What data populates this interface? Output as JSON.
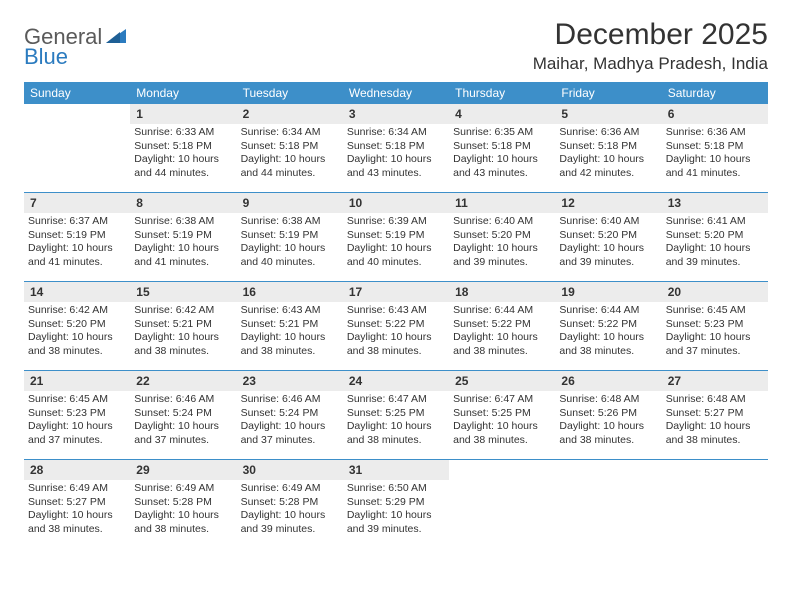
{
  "logo": {
    "word1": "General",
    "word2": "Blue"
  },
  "title": "December 2025",
  "location": "Maihar, Madhya Pradesh, India",
  "colors": {
    "header_bg": "#3d8fc9",
    "header_text": "#ffffff",
    "daynum_bg": "#ececec",
    "rule": "#3d8fc9",
    "logo_blue": "#2b7bbf"
  },
  "day_names": [
    "Sunday",
    "Monday",
    "Tuesday",
    "Wednesday",
    "Thursday",
    "Friday",
    "Saturday"
  ],
  "weeks": [
    [
      null,
      {
        "n": "1",
        "sr": "Sunrise: 6:33 AM",
        "ss": "Sunset: 5:18 PM",
        "d1": "Daylight: 10 hours",
        "d2": "and 44 minutes."
      },
      {
        "n": "2",
        "sr": "Sunrise: 6:34 AM",
        "ss": "Sunset: 5:18 PM",
        "d1": "Daylight: 10 hours",
        "d2": "and 44 minutes."
      },
      {
        "n": "3",
        "sr": "Sunrise: 6:34 AM",
        "ss": "Sunset: 5:18 PM",
        "d1": "Daylight: 10 hours",
        "d2": "and 43 minutes."
      },
      {
        "n": "4",
        "sr": "Sunrise: 6:35 AM",
        "ss": "Sunset: 5:18 PM",
        "d1": "Daylight: 10 hours",
        "d2": "and 43 minutes."
      },
      {
        "n": "5",
        "sr": "Sunrise: 6:36 AM",
        "ss": "Sunset: 5:18 PM",
        "d1": "Daylight: 10 hours",
        "d2": "and 42 minutes."
      },
      {
        "n": "6",
        "sr": "Sunrise: 6:36 AM",
        "ss": "Sunset: 5:18 PM",
        "d1": "Daylight: 10 hours",
        "d2": "and 41 minutes."
      }
    ],
    [
      {
        "n": "7",
        "sr": "Sunrise: 6:37 AM",
        "ss": "Sunset: 5:19 PM",
        "d1": "Daylight: 10 hours",
        "d2": "and 41 minutes."
      },
      {
        "n": "8",
        "sr": "Sunrise: 6:38 AM",
        "ss": "Sunset: 5:19 PM",
        "d1": "Daylight: 10 hours",
        "d2": "and 41 minutes."
      },
      {
        "n": "9",
        "sr": "Sunrise: 6:38 AM",
        "ss": "Sunset: 5:19 PM",
        "d1": "Daylight: 10 hours",
        "d2": "and 40 minutes."
      },
      {
        "n": "10",
        "sr": "Sunrise: 6:39 AM",
        "ss": "Sunset: 5:19 PM",
        "d1": "Daylight: 10 hours",
        "d2": "and 40 minutes."
      },
      {
        "n": "11",
        "sr": "Sunrise: 6:40 AM",
        "ss": "Sunset: 5:20 PM",
        "d1": "Daylight: 10 hours",
        "d2": "and 39 minutes."
      },
      {
        "n": "12",
        "sr": "Sunrise: 6:40 AM",
        "ss": "Sunset: 5:20 PM",
        "d1": "Daylight: 10 hours",
        "d2": "and 39 minutes."
      },
      {
        "n": "13",
        "sr": "Sunrise: 6:41 AM",
        "ss": "Sunset: 5:20 PM",
        "d1": "Daylight: 10 hours",
        "d2": "and 39 minutes."
      }
    ],
    [
      {
        "n": "14",
        "sr": "Sunrise: 6:42 AM",
        "ss": "Sunset: 5:20 PM",
        "d1": "Daylight: 10 hours",
        "d2": "and 38 minutes."
      },
      {
        "n": "15",
        "sr": "Sunrise: 6:42 AM",
        "ss": "Sunset: 5:21 PM",
        "d1": "Daylight: 10 hours",
        "d2": "and 38 minutes."
      },
      {
        "n": "16",
        "sr": "Sunrise: 6:43 AM",
        "ss": "Sunset: 5:21 PM",
        "d1": "Daylight: 10 hours",
        "d2": "and 38 minutes."
      },
      {
        "n": "17",
        "sr": "Sunrise: 6:43 AM",
        "ss": "Sunset: 5:22 PM",
        "d1": "Daylight: 10 hours",
        "d2": "and 38 minutes."
      },
      {
        "n": "18",
        "sr": "Sunrise: 6:44 AM",
        "ss": "Sunset: 5:22 PM",
        "d1": "Daylight: 10 hours",
        "d2": "and 38 minutes."
      },
      {
        "n": "19",
        "sr": "Sunrise: 6:44 AM",
        "ss": "Sunset: 5:22 PM",
        "d1": "Daylight: 10 hours",
        "d2": "and 38 minutes."
      },
      {
        "n": "20",
        "sr": "Sunrise: 6:45 AM",
        "ss": "Sunset: 5:23 PM",
        "d1": "Daylight: 10 hours",
        "d2": "and 37 minutes."
      }
    ],
    [
      {
        "n": "21",
        "sr": "Sunrise: 6:45 AM",
        "ss": "Sunset: 5:23 PM",
        "d1": "Daylight: 10 hours",
        "d2": "and 37 minutes."
      },
      {
        "n": "22",
        "sr": "Sunrise: 6:46 AM",
        "ss": "Sunset: 5:24 PM",
        "d1": "Daylight: 10 hours",
        "d2": "and 37 minutes."
      },
      {
        "n": "23",
        "sr": "Sunrise: 6:46 AM",
        "ss": "Sunset: 5:24 PM",
        "d1": "Daylight: 10 hours",
        "d2": "and 37 minutes."
      },
      {
        "n": "24",
        "sr": "Sunrise: 6:47 AM",
        "ss": "Sunset: 5:25 PM",
        "d1": "Daylight: 10 hours",
        "d2": "and 38 minutes."
      },
      {
        "n": "25",
        "sr": "Sunrise: 6:47 AM",
        "ss": "Sunset: 5:25 PM",
        "d1": "Daylight: 10 hours",
        "d2": "and 38 minutes."
      },
      {
        "n": "26",
        "sr": "Sunrise: 6:48 AM",
        "ss": "Sunset: 5:26 PM",
        "d1": "Daylight: 10 hours",
        "d2": "and 38 minutes."
      },
      {
        "n": "27",
        "sr": "Sunrise: 6:48 AM",
        "ss": "Sunset: 5:27 PM",
        "d1": "Daylight: 10 hours",
        "d2": "and 38 minutes."
      }
    ],
    [
      {
        "n": "28",
        "sr": "Sunrise: 6:49 AM",
        "ss": "Sunset: 5:27 PM",
        "d1": "Daylight: 10 hours",
        "d2": "and 38 minutes."
      },
      {
        "n": "29",
        "sr": "Sunrise: 6:49 AM",
        "ss": "Sunset: 5:28 PM",
        "d1": "Daylight: 10 hours",
        "d2": "and 38 minutes."
      },
      {
        "n": "30",
        "sr": "Sunrise: 6:49 AM",
        "ss": "Sunset: 5:28 PM",
        "d1": "Daylight: 10 hours",
        "d2": "and 39 minutes."
      },
      {
        "n": "31",
        "sr": "Sunrise: 6:50 AM",
        "ss": "Sunset: 5:29 PM",
        "d1": "Daylight: 10 hours",
        "d2": "and 39 minutes."
      },
      null,
      null,
      null
    ]
  ]
}
